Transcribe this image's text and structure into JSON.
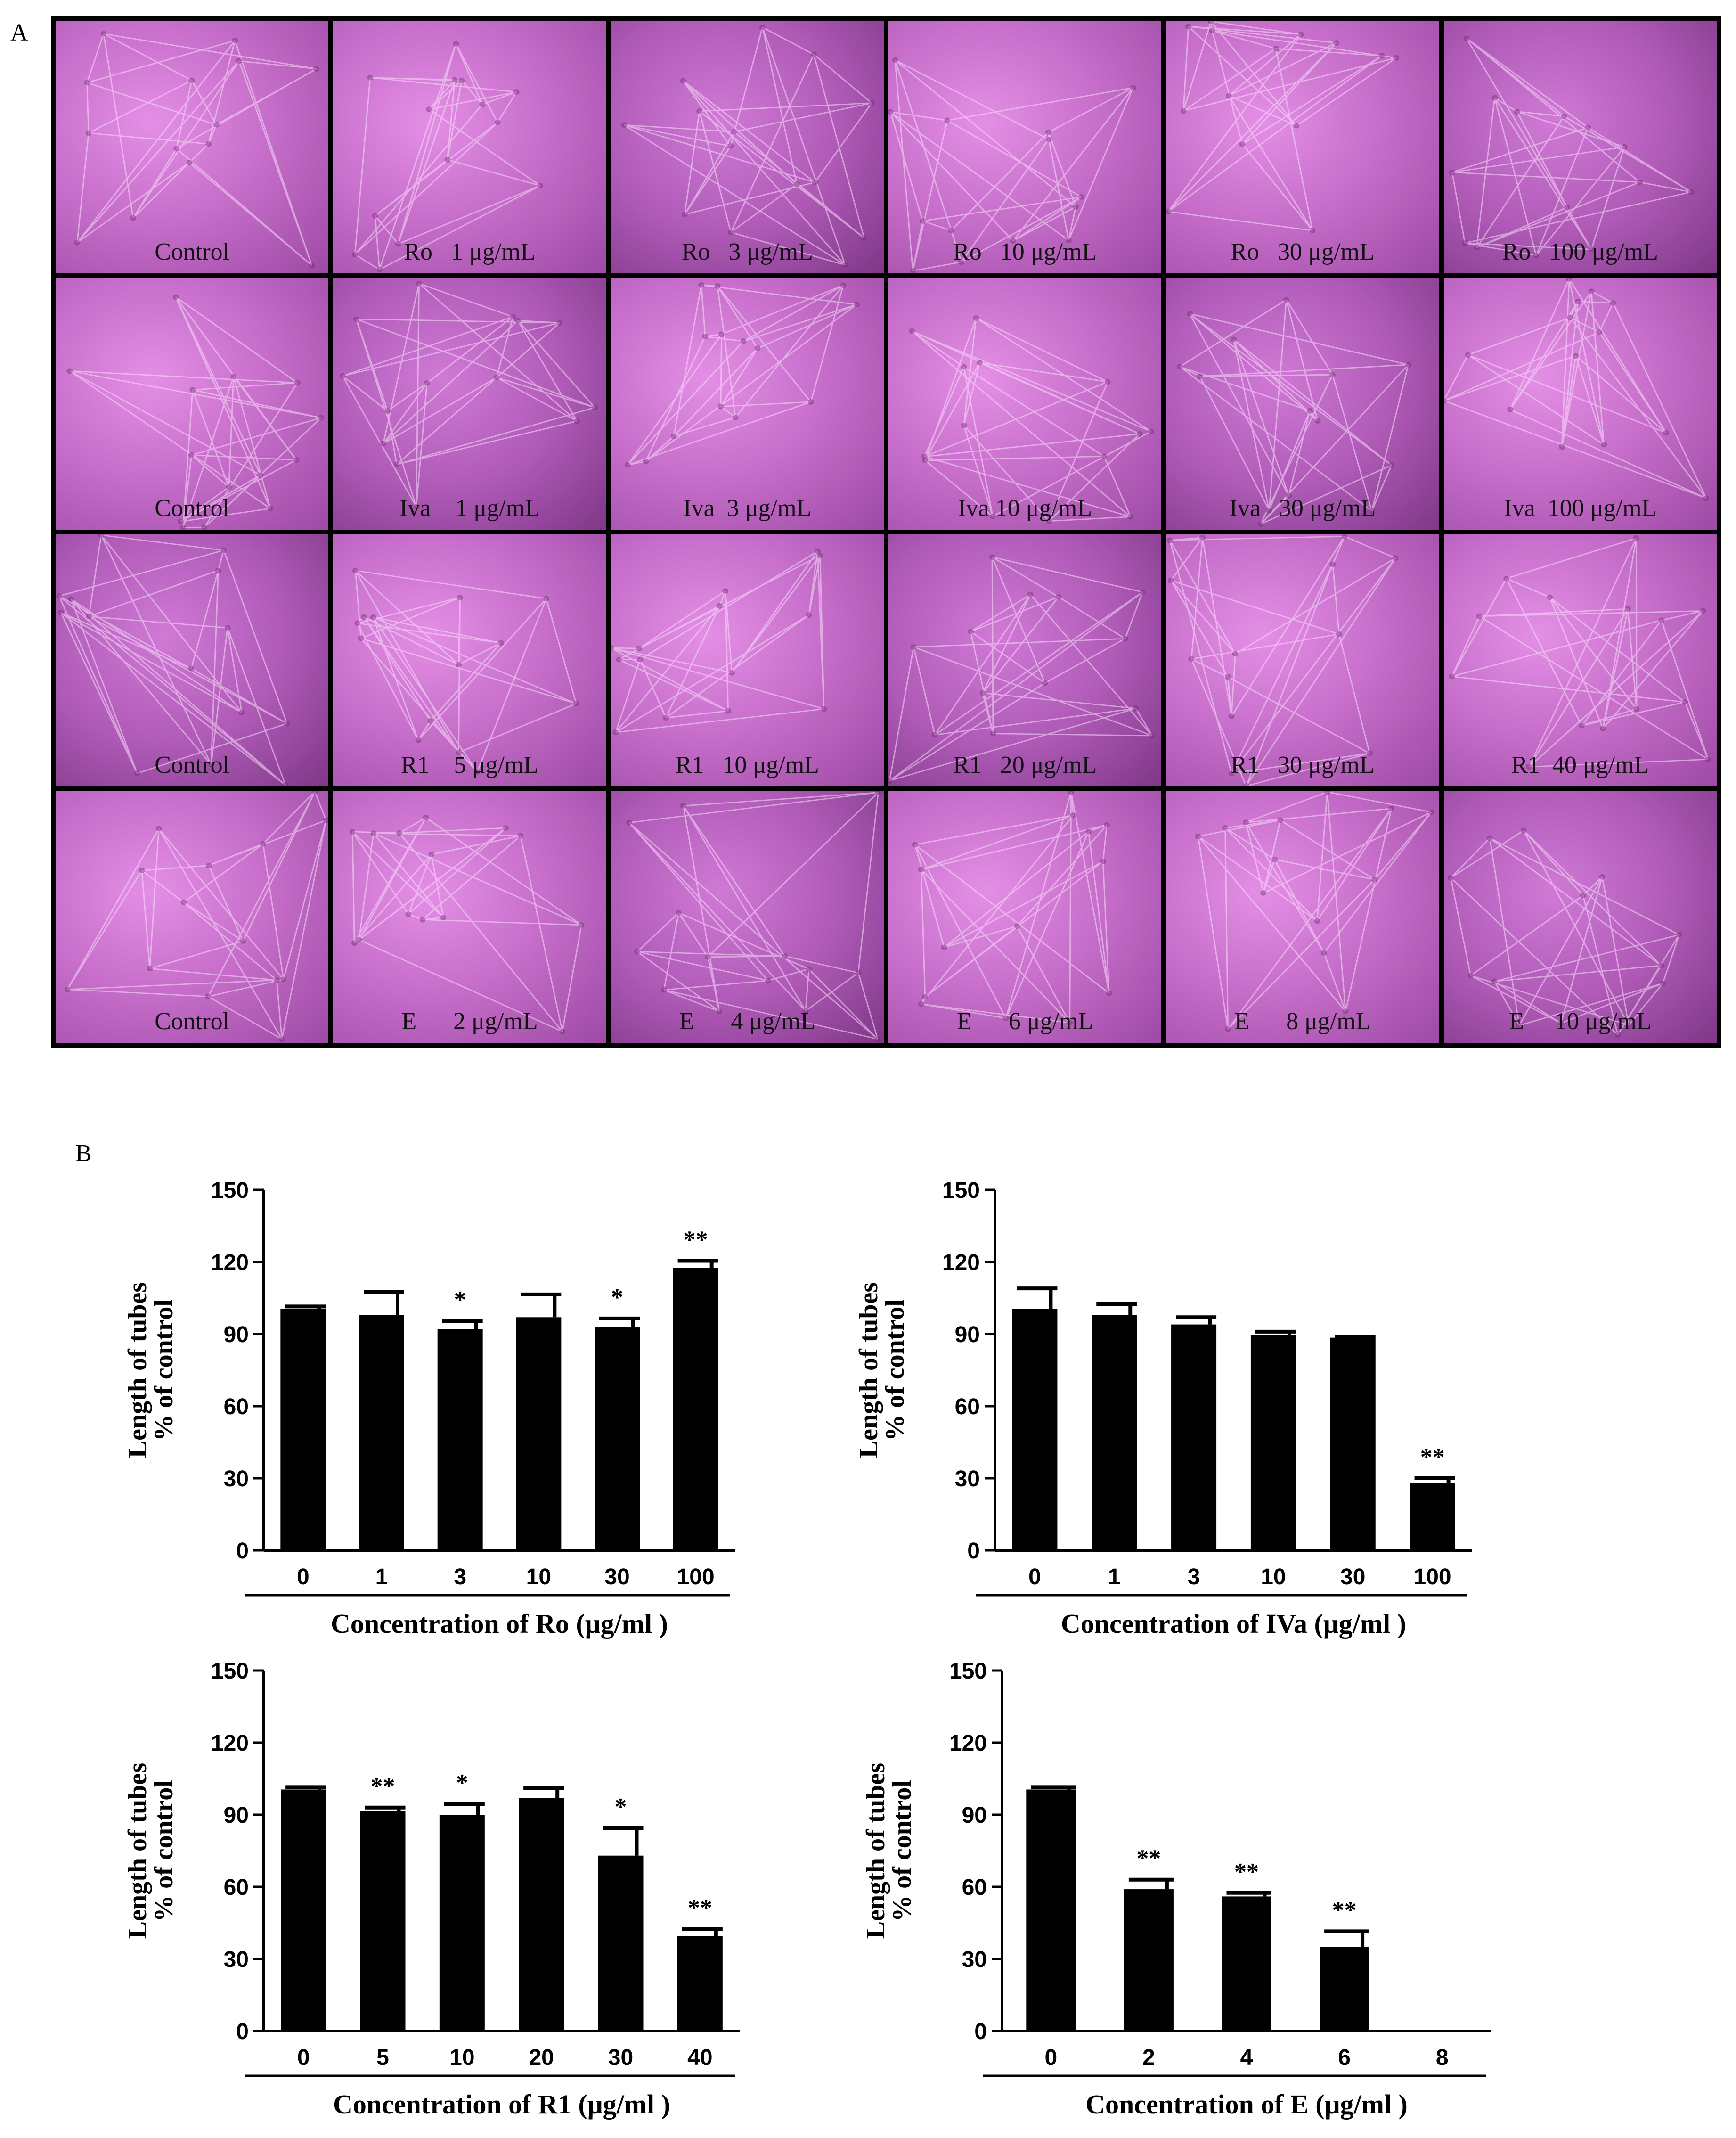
{
  "panel_a_letter": "A",
  "panel_b_letter": "B",
  "micrographs": [
    [
      "Control",
      "Ro   1 μg/mL",
      "Ro   3 μg/mL",
      "Ro   10 μg/mL",
      "Ro   30 μg/mL",
      "Ro   100 μg/mL"
    ],
    [
      "Control",
      "Iva    1 μg/mL",
      "Iva  3 μg/mL",
      "Iva 10 μg/mL",
      "Iva   30 μg/mL",
      "Iva  100 μg/mL"
    ],
    [
      "Control",
      "R1    5 μg/mL",
      "R1   10 μg/mL",
      "R1   20 μg/mL",
      "R1   30 μg/mL",
      "R1  40 μg/mL"
    ],
    [
      "Control",
      "E      2 μg/mL",
      "E      4 μg/mL",
      "E      6 μg/mL",
      "E      8 μg/mL",
      "E     10 μg/mL"
    ]
  ],
  "colors": {
    "bar": "#000000",
    "micrograph": "#c76fcb"
  },
  "chart_data": [
    {
      "type": "bar",
      "categories": [
        "0",
        "1",
        "3",
        "10",
        "30",
        "100"
      ],
      "values": [
        100.5,
        98,
        92,
        97,
        93,
        117.5
      ],
      "errors": [
        1,
        9.5,
        3.5,
        9.5,
        3.5,
        3
      ],
      "significance": [
        "",
        "",
        "*",
        "",
        "*",
        "**"
      ],
      "ylabel": [
        "Length of tubes",
        "% of control"
      ],
      "xlabel": "Concentration of Ro  (μg/ml )",
      "yticks": [
        0,
        30,
        60,
        90,
        120,
        150
      ],
      "ylim": [
        0,
        150
      ]
    },
    {
      "type": "bar",
      "categories": [
        "0",
        "1",
        "3",
        "10",
        "30",
        "100"
      ],
      "values": [
        100.5,
        98,
        94,
        89.5,
        88.5,
        28
      ],
      "errors": [
        8.5,
        4.5,
        3,
        1.5,
        0.5,
        2
      ],
      "significance": [
        "",
        "",
        "",
        "",
        "",
        "**"
      ],
      "ylabel": [
        "Length of tubes",
        "% of control"
      ],
      "xlabel": "Concentration of IVa  (μg/ml )",
      "yticks": [
        0,
        30,
        60,
        90,
        120,
        150
      ],
      "ylim": [
        0,
        150
      ]
    },
    {
      "type": "bar",
      "categories": [
        "0",
        "5",
        "10",
        "20",
        "30",
        "40"
      ],
      "values": [
        100.5,
        91.5,
        90,
        97,
        73,
        39.5
      ],
      "errors": [
        1,
        1.5,
        4.5,
        4,
        11.5,
        3
      ],
      "significance": [
        "",
        "**",
        "*",
        "",
        "*",
        "**"
      ],
      "ylabel": [
        "Length of tubes",
        "% of control"
      ],
      "xlabel": "Concentration of R1  (μg/ml )",
      "yticks": [
        0,
        30,
        60,
        90,
        120,
        150
      ],
      "ylim": [
        0,
        150
      ]
    },
    {
      "type": "bar",
      "categories": [
        "0",
        "2",
        "4",
        "6",
        "8"
      ],
      "values": [
        100.5,
        59,
        56,
        35,
        0
      ],
      "errors": [
        1,
        4,
        1.5,
        6.5,
        0
      ],
      "significance": [
        "",
        "**",
        "**",
        "**",
        ""
      ],
      "ylabel": [
        "Length of tubes",
        "% of control"
      ],
      "xlabel": "Concentration of E  (μg/ml )",
      "yticks": [
        0,
        30,
        60,
        90,
        120,
        150
      ],
      "ylim": [
        0,
        150
      ]
    }
  ]
}
